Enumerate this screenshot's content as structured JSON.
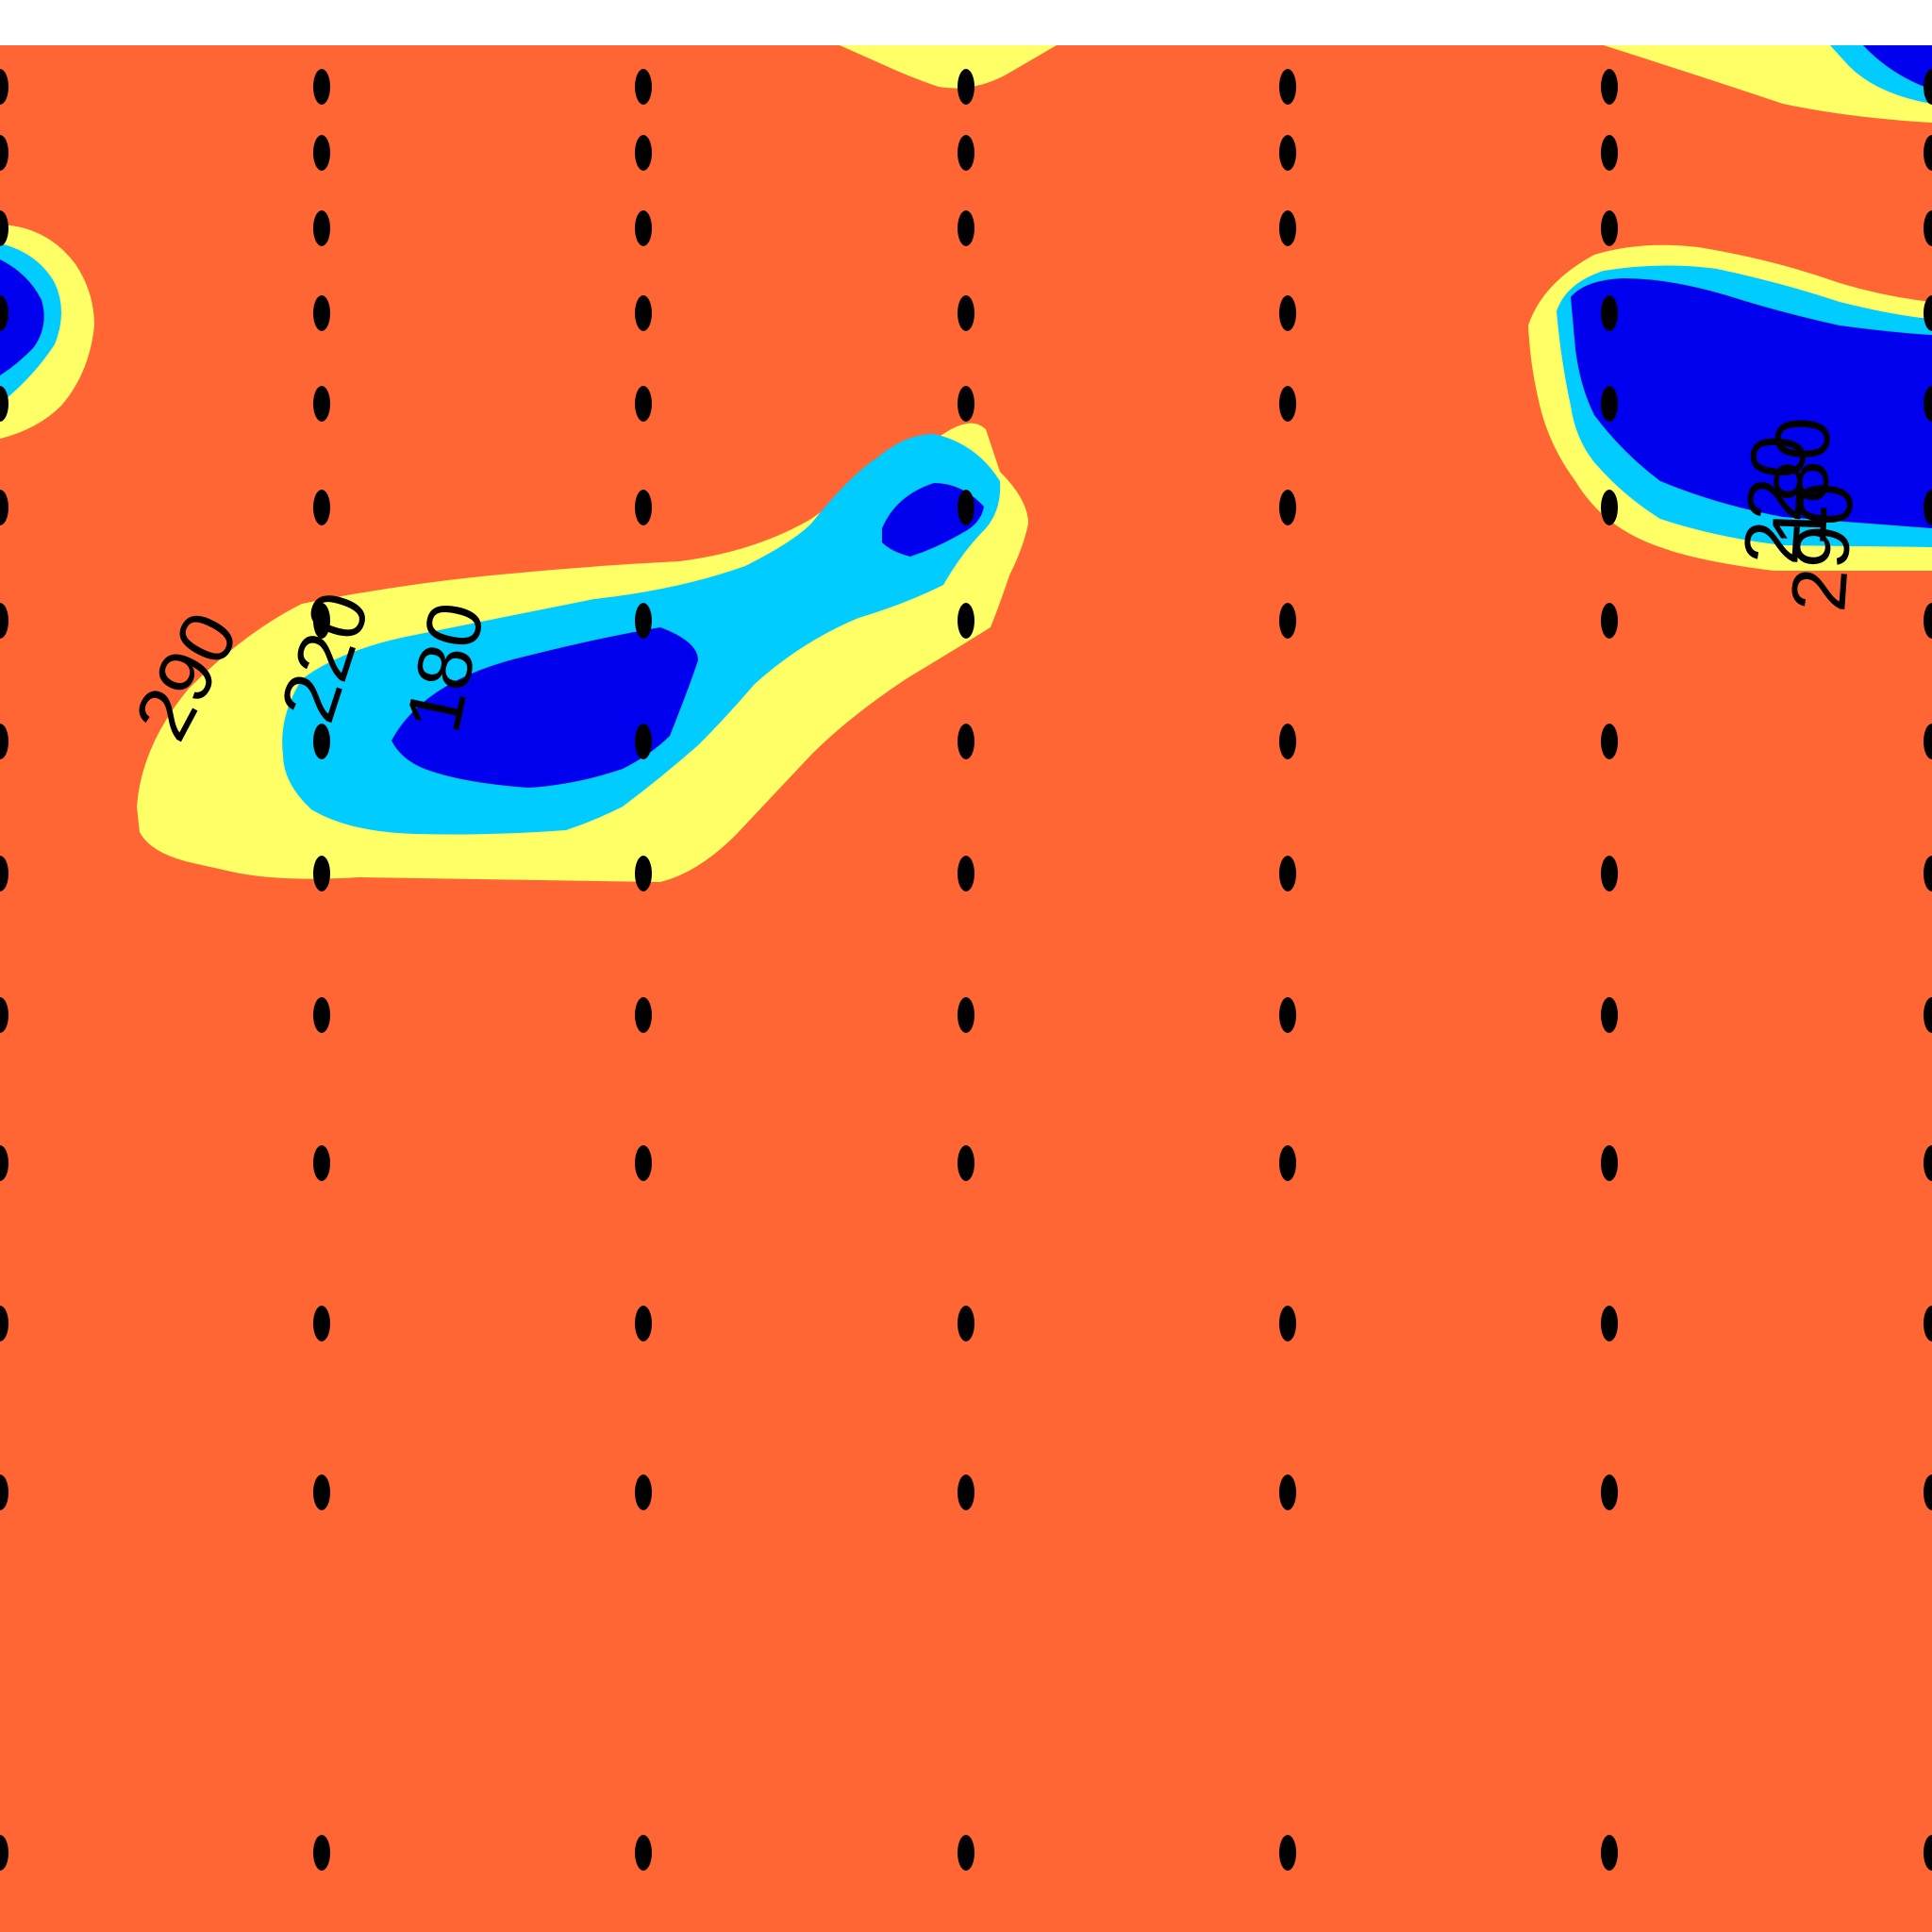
{
  "chart_data": {
    "type": "contourf",
    "title": "",
    "xlabel": "",
    "ylabel": "",
    "levels": [
      180,
      220,
      290
    ],
    "level_colors": {
      "below_180": "#0000ee",
      "180_to_220": "#00ccff",
      "220_to_290": "#ffff66",
      "above_290": "#ff6633"
    },
    "contour_labels": [
      "290",
      "220",
      "180",
      "220",
      "180",
      "290"
    ],
    "marker_columns": 7,
    "marker_rows": 14,
    "marker_color": "#000000"
  }
}
